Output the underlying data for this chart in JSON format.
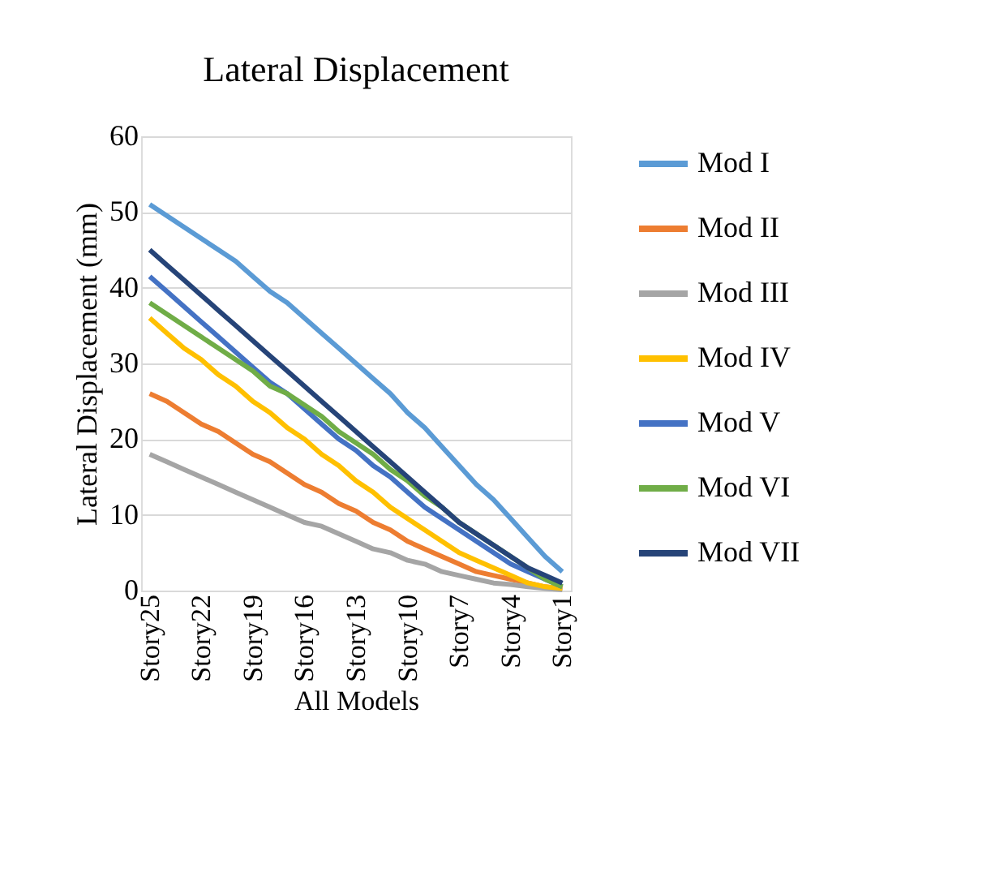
{
  "chart_data": {
    "type": "line",
    "title": "Lateral Displacement",
    "xlabel": "All Models",
    "ylabel": "Lateral Displacement (mm)",
    "categories": [
      "Story25",
      null,
      null,
      "Story22",
      null,
      null,
      "Story19",
      null,
      null,
      "Story16",
      null,
      null,
      "Story13",
      null,
      null,
      "Story10",
      null,
      null,
      "Story7",
      null,
      null,
      "Story4",
      null,
      null,
      "Story1"
    ],
    "series": [
      {
        "name": "Mod I",
        "color": "#5b9bd5",
        "values": [
          51,
          49.5,
          48,
          46.5,
          45,
          43.5,
          41.5,
          39.5,
          38,
          36,
          34,
          32,
          30,
          28,
          26,
          23.5,
          21.5,
          19,
          16.5,
          14,
          12,
          9.5,
          7,
          4.5,
          2.5
        ]
      },
      {
        "name": "Mod II",
        "color": "#ed7d31",
        "values": [
          26,
          25,
          23.5,
          22,
          21,
          19.5,
          18,
          17,
          15.5,
          14,
          13,
          11.5,
          10.5,
          9,
          8,
          6.5,
          5.5,
          4.5,
          3.5,
          2.5,
          2,
          1.5,
          1,
          0.5,
          0.2
        ]
      },
      {
        "name": "Mod III",
        "color": "#a5a5a5",
        "values": [
          18,
          17,
          16,
          15,
          14,
          13,
          12,
          11,
          10,
          9,
          8.5,
          7.5,
          6.5,
          5.5,
          5,
          4,
          3.5,
          2.5,
          2,
          1.5,
          1,
          0.8,
          0.5,
          0.3,
          0.1
        ]
      },
      {
        "name": "Mod IV",
        "color": "#ffc000",
        "values": [
          36,
          34,
          32,
          30.5,
          28.5,
          27,
          25,
          23.5,
          21.5,
          20,
          18,
          16.5,
          14.5,
          13,
          11,
          9.5,
          8,
          6.5,
          5,
          4,
          3,
          2,
          1,
          0.5,
          0.3
        ]
      },
      {
        "name": "Mod V",
        "color": "#4472c4",
        "values": [
          41.5,
          39.5,
          37.5,
          35.5,
          33.5,
          31.5,
          29.5,
          27.5,
          26,
          24,
          22,
          20,
          18.5,
          16.5,
          15,
          13,
          11,
          9.5,
          8,
          6.5,
          5,
          3.5,
          2.5,
          1.5,
          0.5
        ]
      },
      {
        "name": "Mod VI",
        "color": "#70ad47",
        "values": [
          38,
          36.5,
          35,
          33.5,
          32,
          30.5,
          29,
          27,
          26,
          24.5,
          23,
          21,
          19.5,
          18,
          16,
          14.5,
          12.5,
          11,
          9,
          7.5,
          6,
          4.5,
          3,
          1.5,
          0.5
        ]
      },
      {
        "name": "Mod VII",
        "color": "#264478",
        "values": [
          45,
          43,
          41,
          39,
          37,
          35,
          33,
          31,
          29,
          27,
          25,
          23,
          21,
          19,
          17,
          15,
          13,
          11,
          9,
          7.5,
          6,
          4.5,
          3,
          2,
          1
        ]
      }
    ],
    "ylim": [
      0,
      60
    ],
    "yticks": [
      0,
      10,
      20,
      30,
      40,
      50,
      60
    ],
    "grid": "y",
    "legend": "right",
    "marker": "none",
    "line_style": "solid"
  }
}
